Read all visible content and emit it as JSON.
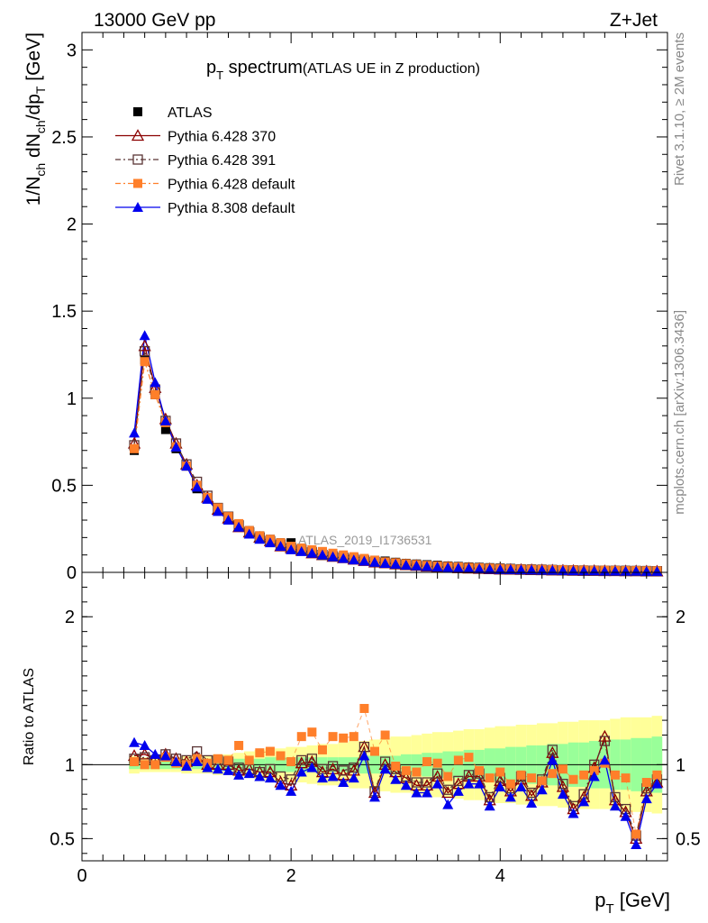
{
  "header": {
    "energy_label": "13000 GeV pp",
    "process_label": "Z+Jet"
  },
  "side_labels": {
    "rivet": "Rivet 3.1.10, ≥ 2M events",
    "mcplots": "mcplots.cern.ch [arXiv:1306.3436]"
  },
  "watermark": "ATLAS_2019_I1736531",
  "colors": {
    "atlas": "#000000",
    "py370": "#8b0000",
    "py391": "#5a3535",
    "py6def": "#ff7f2a",
    "py8def": "#0000ee",
    "band_yellow": "#ffff99",
    "band_green": "#99ff99"
  },
  "chart_data": [
    {
      "type": "line",
      "title": {
        "main": "p",
        "sub": "T",
        "rest": " spectrum",
        "note": "(ATLAS UE in Z production)"
      },
      "ylabel": "1/N_ch dN_ch/dp_T [GeV]",
      "xlim": [
        0,
        5.6
      ],
      "ylim": [
        0,
        3.1
      ],
      "yticks": [
        {
          "v": 0,
          "label": "0"
        },
        {
          "v": 0.5,
          "label": "0.5"
        },
        {
          "v": 1,
          "label": "1"
        },
        {
          "v": 1.5,
          "label": "1.5"
        },
        {
          "v": 2,
          "label": "2"
        },
        {
          "v": 2.5,
          "label": "2.5"
        },
        {
          "v": 3,
          "label": "3"
        }
      ],
      "x": [
        0.5,
        0.6,
        0.7,
        0.8,
        0.9,
        1.0,
        1.1,
        1.2,
        1.3,
        1.4,
        1.5,
        1.6,
        1.7,
        1.8,
        1.9,
        2.0,
        2.1,
        2.2,
        2.3,
        2.4,
        2.5,
        2.6,
        2.7,
        2.8,
        2.9,
        3.0,
        3.1,
        3.2,
        3.3,
        3.4,
        3.5,
        3.6,
        3.7,
        3.8,
        3.9,
        4.0,
        4.1,
        4.2,
        4.3,
        4.4,
        4.5,
        4.6,
        4.7,
        4.8,
        4.9,
        5.0,
        5.1,
        5.2,
        5.3,
        5.4,
        5.5
      ],
      "series": [
        {
          "name": "ATLAS",
          "key": "atlas",
          "style": "data",
          "values": [
            0.7,
            1.22,
            1.02,
            0.82,
            0.71,
            0.61,
            0.48,
            0.43,
            0.36,
            0.31,
            0.27,
            0.24,
            0.21,
            0.19,
            0.17,
            0.17,
            0.13,
            0.12,
            0.11,
            0.1,
            0.09,
            0.085,
            0.075,
            0.07,
            0.065,
            0.058,
            0.052,
            0.048,
            0.044,
            0.041,
            0.037,
            0.034,
            0.031,
            0.029,
            0.027,
            0.025,
            0.023,
            0.021,
            0.02,
            0.019,
            0.017,
            0.016,
            0.015,
            0.014,
            0.013,
            0.013,
            0.012,
            0.012,
            0.011,
            0.011,
            0.01
          ]
        },
        {
          "name": "Pythia 6.428 370",
          "key": "py370",
          "style": "triangle-open",
          "values": [
            0.74,
            1.3,
            1.06,
            0.88,
            0.74,
            0.62,
            0.5,
            0.43,
            0.36,
            0.31,
            0.26,
            0.23,
            0.2,
            0.18,
            0.15,
            0.14,
            0.125,
            0.11,
            0.1,
            0.09,
            0.082,
            0.074,
            0.066,
            0.058,
            0.053,
            0.047,
            0.042,
            0.038,
            0.034,
            0.031,
            0.028,
            0.025,
            0.023,
            0.021,
            0.019,
            0.017,
            0.016,
            0.015,
            0.014,
            0.013,
            0.012,
            0.011,
            0.01,
            0.009,
            0.009,
            0.008,
            0.008,
            0.007,
            0.007,
            0.006,
            0.006
          ]
        },
        {
          "name": "Pythia 6.428 391",
          "key": "py391",
          "style": "square-open",
          "values": [
            0.73,
            1.27,
            1.05,
            0.87,
            0.74,
            0.62,
            0.52,
            0.44,
            0.37,
            0.32,
            0.27,
            0.23,
            0.2,
            0.18,
            0.16,
            0.14,
            0.13,
            0.115,
            0.1,
            0.092,
            0.084,
            0.076,
            0.068,
            0.06,
            0.055,
            0.049,
            0.044,
            0.04,
            0.036,
            0.033,
            0.03,
            0.027,
            0.025,
            0.023,
            0.021,
            0.019,
            0.018,
            0.016,
            0.015,
            0.014,
            0.013,
            0.012,
            0.011,
            0.01,
            0.01,
            0.009,
            0.009,
            0.008,
            0.008,
            0.007,
            0.007
          ]
        },
        {
          "name": "Pythia 6.428 default",
          "key": "py6def",
          "style": "square-filled",
          "values": [
            0.71,
            1.21,
            1.02,
            0.86,
            0.72,
            0.61,
            0.5,
            0.43,
            0.37,
            0.32,
            0.28,
            0.24,
            0.21,
            0.19,
            0.17,
            0.15,
            0.14,
            0.13,
            0.12,
            0.11,
            0.1,
            0.09,
            0.08,
            0.07,
            0.06,
            0.055,
            0.05,
            0.045,
            0.04,
            0.037,
            0.034,
            0.031,
            0.028,
            0.026,
            0.024,
            0.022,
            0.02,
            0.019,
            0.018,
            0.017,
            0.016,
            0.015,
            0.014,
            0.013,
            0.012,
            0.012,
            0.011,
            0.01,
            0.01,
            0.009,
            0.009
          ]
        },
        {
          "name": "Pythia 8.308 default",
          "key": "py8def",
          "style": "triangle-filled",
          "values": [
            0.8,
            1.36,
            1.09,
            0.87,
            0.72,
            0.61,
            0.49,
            0.42,
            0.35,
            0.3,
            0.26,
            0.22,
            0.19,
            0.17,
            0.15,
            0.13,
            0.12,
            0.11,
            0.1,
            0.09,
            0.08,
            0.072,
            0.065,
            0.058,
            0.052,
            0.047,
            0.042,
            0.038,
            0.034,
            0.031,
            0.028,
            0.025,
            0.023,
            0.021,
            0.019,
            0.017,
            0.016,
            0.015,
            0.014,
            0.013,
            0.012,
            0.011,
            0.01,
            0.009,
            0.009,
            0.008,
            0.008,
            0.007,
            0.007,
            0.006,
            0.006
          ]
        }
      ]
    },
    {
      "type": "line",
      "ylabel": "Ratio to ATLAS",
      "xlabel": {
        "main": "p",
        "sub": "T",
        "rest": " [GeV]"
      },
      "xlim": [
        0,
        5.6
      ],
      "ylim": [
        0.35,
        2.3
      ],
      "xticks": [
        {
          "v": 0,
          "label": "0"
        },
        {
          "v": 2,
          "label": "2"
        },
        {
          "v": 4,
          "label": "4"
        }
      ],
      "yticks": [
        {
          "v": 0.5,
          "label": "0.5"
        },
        {
          "v": 1,
          "label": "1"
        },
        {
          "v": 2,
          "label": "2"
        }
      ],
      "band_yellow_halfwidth": [
        0.06,
        0.05,
        0.05,
        0.05,
        0.05,
        0.06,
        0.06,
        0.06,
        0.07,
        0.07,
        0.08,
        0.09,
        0.1,
        0.11,
        0.11,
        0.12,
        0.12,
        0.13,
        0.14,
        0.14,
        0.15,
        0.16,
        0.16,
        0.17,
        0.18,
        0.19,
        0.19,
        0.2,
        0.21,
        0.22,
        0.22,
        0.23,
        0.24,
        0.24,
        0.25,
        0.26,
        0.26,
        0.27,
        0.27,
        0.28,
        0.28,
        0.29,
        0.29,
        0.3,
        0.3,
        0.3,
        0.31,
        0.32,
        0.32,
        0.32,
        0.33
      ],
      "band_green_halfwidth": [
        0.03,
        0.03,
        0.03,
        0.03,
        0.03,
        0.03,
        0.03,
        0.03,
        0.04,
        0.04,
        0.04,
        0.04,
        0.04,
        0.05,
        0.05,
        0.05,
        0.05,
        0.05,
        0.05,
        0.05,
        0.05,
        0.05,
        0.06,
        0.06,
        0.06,
        0.06,
        0.07,
        0.07,
        0.08,
        0.08,
        0.09,
        0.09,
        0.1,
        0.1,
        0.11,
        0.11,
        0.12,
        0.12,
        0.13,
        0.13,
        0.14,
        0.14,
        0.15,
        0.15,
        0.16,
        0.16,
        0.17,
        0.17,
        0.18,
        0.18,
        0.19
      ],
      "series": [
        {
          "name": "Pythia 6.428 370",
          "key": "py370",
          "style": "triangle-open",
          "values": [
            1.06,
            1.07,
            1.04,
            1.07,
            1.04,
            1.02,
            1.05,
            1.0,
            1.0,
            1.0,
            0.96,
            0.97,
            0.95,
            0.95,
            0.88,
            0.86,
            1.01,
            1.02,
            0.95,
            0.97,
            0.93,
            0.96,
            1.12,
            0.81,
            1.0,
            0.95,
            0.91,
            0.86,
            0.86,
            0.92,
            0.81,
            0.87,
            0.92,
            0.92,
            0.76,
            0.89,
            0.82,
            0.9,
            0.79,
            0.88,
            1.08,
            0.85,
            0.7,
            0.78,
            0.98,
            1.19,
            0.76,
            0.68,
            0.5,
            0.82,
            0.88
          ]
        },
        {
          "name": "Pythia 6.428 391",
          "key": "py391",
          "style": "square-open",
          "values": [
            1.04,
            1.05,
            1.03,
            1.07,
            1.04,
            1.03,
            1.09,
            1.03,
            1.03,
            1.02,
            0.98,
            0.97,
            0.95,
            0.97,
            0.92,
            0.9,
            1.03,
            1.04,
            0.97,
            0.99,
            0.96,
            0.98,
            1.12,
            0.82,
            1.02,
            0.97,
            0.92,
            0.88,
            0.88,
            0.94,
            0.83,
            0.89,
            0.93,
            0.94,
            0.78,
            0.91,
            0.84,
            0.92,
            0.81,
            0.9,
            1.1,
            0.87,
            0.72,
            0.8,
            1.0,
            1.16,
            0.78,
            0.7,
            0.52,
            0.84,
            0.9
          ]
        },
        {
          "name": "Pythia 6.428 default",
          "key": "py6def",
          "style": "square-filled",
          "values": [
            1.02,
            1.0,
            1.0,
            1.05,
            1.01,
            1.0,
            1.04,
            1.01,
            1.04,
            1.03,
            1.13,
            1.03,
            1.08,
            1.09,
            1.06,
            1.02,
            1.19,
            1.22,
            1.1,
            1.19,
            1.18,
            1.19,
            1.38,
            1.09,
            1.2,
            0.99,
            0.96,
            0.95,
            1.02,
            1.01,
            0.92,
            1.03,
            1.05,
            0.96,
            0.91,
            0.95,
            0.87,
            0.93,
            0.91,
            0.89,
            0.94,
            0.97,
            0.9,
            0.93,
            0.96,
            1.01,
            0.93,
            0.91,
            0.53,
            0.88,
            0.93
          ]
        },
        {
          "name": "Pythia 8.308 default",
          "key": "py8def",
          "style": "triangle-filled",
          "values": [
            1.15,
            1.13,
            1.07,
            1.06,
            1.02,
            0.99,
            1.02,
            0.98,
            0.97,
            0.96,
            0.93,
            0.94,
            0.92,
            0.91,
            0.86,
            0.82,
            0.95,
            0.98,
            0.91,
            0.92,
            0.88,
            0.91,
            1.06,
            0.78,
            0.97,
            0.9,
            0.86,
            0.81,
            0.81,
            0.87,
            0.73,
            0.82,
            0.87,
            0.87,
            0.72,
            0.85,
            0.78,
            0.85,
            0.74,
            0.83,
            1.03,
            0.8,
            0.67,
            0.75,
            0.92,
            1.03,
            0.72,
            0.65,
            0.46,
            0.77,
            0.87
          ]
        }
      ]
    }
  ]
}
